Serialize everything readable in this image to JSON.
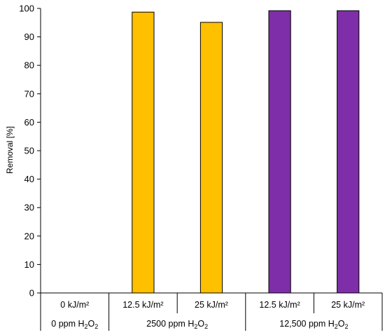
{
  "chart_data": {
    "type": "bar",
    "ylabel": "Removal   [%]",
    "ylim": [
      0,
      100
    ],
    "yticks": [
      0,
      10,
      20,
      30,
      40,
      50,
      60,
      70,
      80,
      90,
      100
    ],
    "grid": false,
    "categories": [
      "0 kJ/m²",
      "12.5 kJ/m²",
      "25 kJ/m²",
      "12.5 kJ/m²",
      "25 kJ/m²"
    ],
    "groups": [
      {
        "label": "0 ppm H",
        "sub1": "2",
        "mid": "O",
        "sub2": "2",
        "span": [
          0,
          0
        ]
      },
      {
        "label": "2500 ppm H",
        "sub1": "2",
        "mid": "O",
        "sub2": "2",
        "span": [
          1,
          2
        ]
      },
      {
        "label": "12,500 ppm H",
        "sub1": "2",
        "mid": "O",
        "sub2": "2",
        "span": [
          3,
          4
        ]
      }
    ],
    "values": [
      0,
      98.7,
      95.1,
      99.2,
      99.2
    ],
    "colors": [
      "#FFC000",
      "#FFC000",
      "#FFC000",
      "#7E2EA8",
      "#7E2EA8"
    ]
  }
}
